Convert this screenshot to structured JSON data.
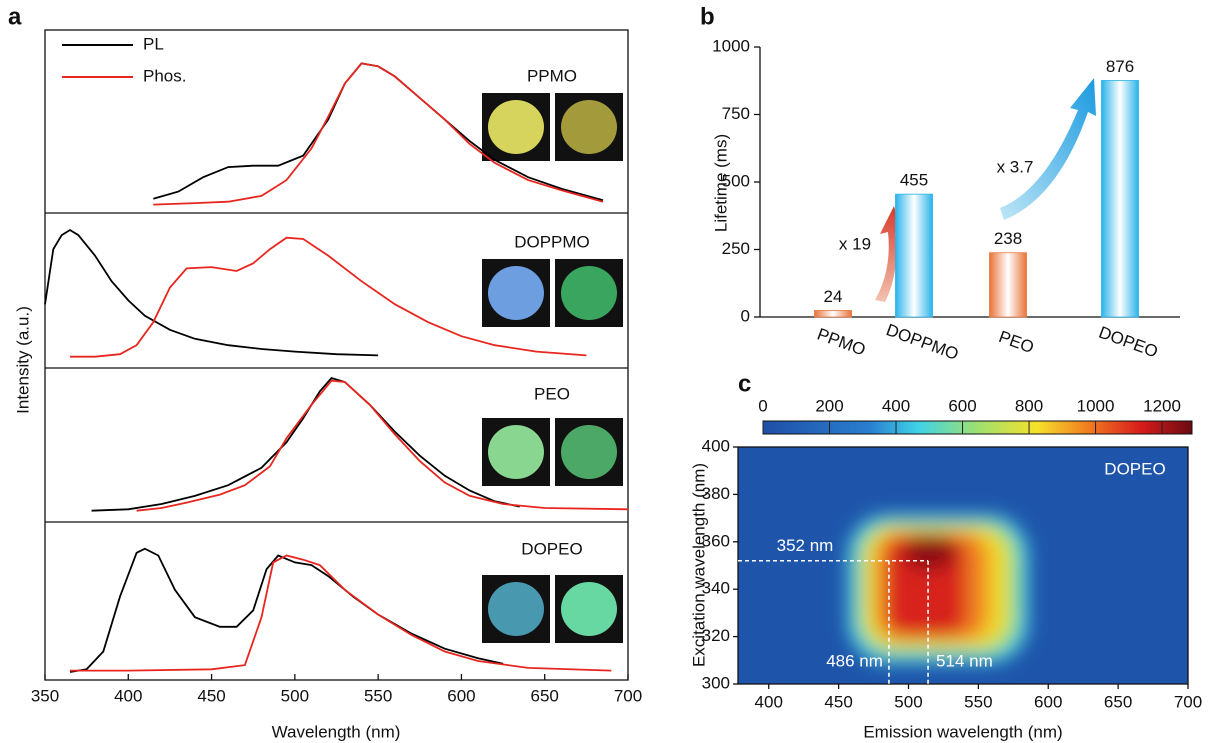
{
  "chart_data": [
    {
      "type": "stacked-line",
      "panel_label": "a",
      "xlabel": "Wavelength (nm)",
      "ylabel": "Intensity (a.u.)",
      "xlim": [
        350,
        700
      ],
      "xticks": [
        350,
        400,
        450,
        500,
        550,
        600,
        650,
        700
      ],
      "series": [
        {
          "name": "PL",
          "color": "#000000"
        },
        {
          "name": "Phos.",
          "color": "#e8261f"
        }
      ],
      "panels": [
        {
          "label": "PPMO",
          "lines": [
            {
              "x": [
                415,
                430,
                445,
                460,
                475,
                490,
                505,
                520,
                530,
                540,
                550,
                560,
                575,
                590,
                605,
                620,
                640,
                660,
                685
              ],
              "values": [
                0.05,
                0.1,
                0.2,
                0.27,
                0.28,
                0.28,
                0.35,
                0.6,
                0.85,
                0.99,
                0.97,
                0.9,
                0.75,
                0.6,
                0.45,
                0.32,
                0.2,
                0.12,
                0.04
              ]
            },
            {
              "x": [
                415,
                440,
                460,
                480,
                495,
                510,
                520,
                530,
                540,
                550,
                560,
                575,
                590,
                605,
                620,
                640,
                660,
                685
              ],
              "values": [
                0.01,
                0.02,
                0.03,
                0.07,
                0.18,
                0.4,
                0.62,
                0.85,
                0.99,
                0.97,
                0.9,
                0.75,
                0.6,
                0.43,
                0.3,
                0.18,
                0.11,
                0.03
              ]
            }
          ]
        },
        {
          "label": "DOPPMO",
          "lines": [
            {
              "x": [
                350,
                355,
                360,
                365,
                370,
                380,
                390,
                400,
                410,
                425,
                440,
                460,
                480,
                500,
                525,
                550
              ],
              "values": [
                0.42,
                0.85,
                0.96,
                1.0,
                0.96,
                0.8,
                0.6,
                0.45,
                0.33,
                0.22,
                0.15,
                0.1,
                0.07,
                0.05,
                0.03,
                0.02
              ]
            },
            {
              "x": [
                365,
                380,
                395,
                405,
                415,
                425,
                435,
                450,
                465,
                475,
                485,
                495,
                505,
                520,
                540,
                560,
                580,
                600,
                620,
                645,
                675
              ],
              "values": [
                0.01,
                0.01,
                0.03,
                0.1,
                0.28,
                0.55,
                0.7,
                0.71,
                0.68,
                0.74,
                0.85,
                0.94,
                0.93,
                0.8,
                0.6,
                0.42,
                0.28,
                0.17,
                0.1,
                0.05,
                0.02
              ]
            }
          ]
        },
        {
          "label": "PEO",
          "lines": [
            {
              "x": [
                378,
                400,
                420,
                440,
                460,
                480,
                495,
                505,
                515,
                522,
                530,
                545,
                560,
                575,
                590,
                605,
                620,
                635
              ],
              "values": [
                0.01,
                0.02,
                0.06,
                0.12,
                0.2,
                0.33,
                0.52,
                0.7,
                0.9,
                1.0,
                0.97,
                0.8,
                0.6,
                0.42,
                0.27,
                0.16,
                0.08,
                0.04
              ]
            },
            {
              "x": [
                405,
                420,
                435,
                455,
                470,
                485,
                495,
                510,
                522,
                530,
                545,
                560,
                575,
                590,
                605,
                625,
                650,
                700
              ],
              "values": [
                0.01,
                0.03,
                0.07,
                0.13,
                0.2,
                0.34,
                0.55,
                0.8,
                0.98,
                0.97,
                0.8,
                0.58,
                0.38,
                0.22,
                0.12,
                0.06,
                0.03,
                0.02
              ]
            }
          ]
        },
        {
          "label": "DOPEO",
          "lines": [
            {
              "x": [
                365,
                375,
                385,
                395,
                405,
                410,
                418,
                428,
                440,
                455,
                465,
                475,
                483,
                490,
                500,
                510,
                520,
                535,
                550,
                570,
                590,
                610,
                625
              ],
              "values": [
                0.0,
                0.02,
                0.15,
                0.55,
                0.87,
                0.9,
                0.85,
                0.6,
                0.4,
                0.33,
                0.33,
                0.45,
                0.75,
                0.85,
                0.8,
                0.78,
                0.7,
                0.55,
                0.42,
                0.28,
                0.17,
                0.1,
                0.06
              ]
            },
            {
              "x": [
                365,
                400,
                450,
                470,
                480,
                487,
                495,
                505,
                515,
                530,
                550,
                570,
                590,
                610,
                640,
                690
              ],
              "values": [
                0.01,
                0.01,
                0.02,
                0.05,
                0.4,
                0.8,
                0.85,
                0.82,
                0.78,
                0.6,
                0.42,
                0.27,
                0.15,
                0.08,
                0.03,
                0.01
              ]
            }
          ]
        }
      ]
    },
    {
      "type": "bar",
      "panel_label": "b",
      "ylabel": "Lifetime (ms)",
      "categories": [
        "PPMO",
        "DOPPMO",
        "PEO",
        "DOPEO"
      ],
      "values": [
        24,
        455,
        238,
        876
      ],
      "colors": [
        "#e8743b",
        "#2bb3ea",
        "#e8743b",
        "#2bb3ea"
      ],
      "ylim": [
        0,
        1000
      ],
      "yticks": [
        0,
        250,
        500,
        750,
        1000
      ],
      "annotations": [
        "x 19",
        "x 3.7"
      ]
    },
    {
      "type": "heatmap",
      "panel_label": "c",
      "title": "DOPEO",
      "xlabel": "Emission wavelength (nm)",
      "ylabel": "Excitation wavelength (nm)",
      "xlim": [
        378,
        700
      ],
      "xticks": [
        400,
        450,
        500,
        550,
        600,
        650,
        700
      ],
      "ylim": [
        300,
        400
      ],
      "yticks": [
        300,
        320,
        340,
        360,
        380,
        400
      ],
      "colorbar": {
        "lim": [
          0,
          1290
        ],
        "ticks": [
          0,
          200,
          400,
          600,
          800,
          1000,
          1200
        ]
      },
      "markers": [
        {
          "value": 352,
          "label": "352 nm"
        },
        {
          "value": 486,
          "label": "486 nm"
        },
        {
          "value": 514,
          "label": "514 nm"
        }
      ]
    }
  ]
}
